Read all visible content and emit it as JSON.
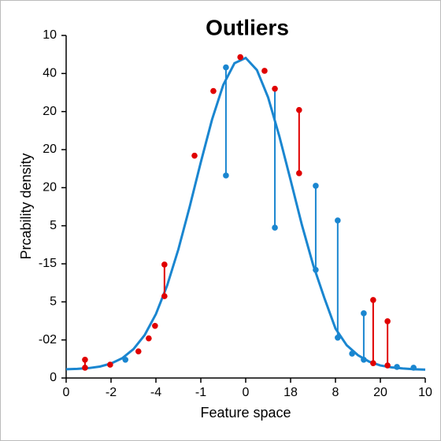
{
  "chart_data": {
    "type": "line",
    "title": "Outliers",
    "x_label": "Feature space",
    "y_label": "Prcability density",
    "xlim": [
      -4,
      4
    ],
    "ylim": [
      0,
      9
    ],
    "xticks": [
      {
        "value": -4,
        "label": "0"
      },
      {
        "value": -3,
        "label": "-2"
      },
      {
        "value": -2,
        "label": "-4"
      },
      -1,
      0,
      {
        "value": 1,
        "label": "18"
      },
      {
        "value": 2,
        "label": "8"
      },
      {
        "value": 3,
        "label": "20"
      },
      {
        "value": 4,
        "label": "10"
      }
    ],
    "yticks": [
      0,
      {
        "value": 1,
        "label": "-02"
      },
      {
        "value": 2,
        "label": "5"
      },
      {
        "value": 3,
        "label": "-15"
      },
      {
        "value": 4,
        "label": "5"
      },
      {
        "value": 5,
        "label": "20"
      },
      {
        "value": 6,
        "label": "20"
      },
      {
        "value": 7,
        "label": "20"
      },
      {
        "value": 8,
        "label": "40"
      },
      {
        "value": 9,
        "label": "10"
      }
    ],
    "curve": {
      "color": "#1a86d0",
      "x": [
        -4,
        -3.75,
        -3.5,
        -3.25,
        -3,
        -2.75,
        -2.5,
        -2.25,
        -2,
        -1.75,
        -1.5,
        -1.25,
        -1,
        -0.75,
        -0.5,
        -0.25,
        0,
        0.25,
        0.5,
        0.75,
        1,
        1.25,
        1.5,
        1.75,
        2,
        2.25,
        2.5,
        2.75,
        3,
        3.25,
        3.5,
        3.75,
        4
      ],
      "values": [
        0.23,
        0.24,
        0.26,
        0.3,
        0.38,
        0.52,
        0.76,
        1.13,
        1.68,
        2.43,
        3.38,
        4.49,
        5.67,
        6.79,
        7.7,
        8.27,
        8.41,
        8.09,
        7.37,
        6.35,
        5.2,
        4.03,
        2.98,
        2.11,
        1.3,
        0.86,
        0.6,
        0.43,
        0.33,
        0.28,
        0.25,
        0.23,
        0.22
      ]
    },
    "points": {
      "x": [
        -3.58,
        -3.02,
        -2.68,
        -2.39,
        -2.16,
        -2.02,
        -1.81,
        -1.14,
        -0.72,
        -0.44,
        -0.12,
        0.42,
        0.65,
        1.19,
        1.56,
        2.05,
        2.37,
        2.63,
        2.84,
        3.16,
        3.37,
        3.74
      ],
      "values": [
        0.27,
        0.35,
        0.48,
        0.7,
        1.04,
        1.37,
        2.15,
        5.84,
        7.54,
        8.16,
        8.43,
        8.07,
        7.6,
        5.38,
        2.84,
        1.06,
        0.64,
        0.48,
        0.39,
        0.33,
        0.29,
        0.27
      ],
      "colors": [
        "#e00000",
        "#e00000",
        "#1a86d0",
        "#e00000",
        "#e00000",
        "#e00000",
        "#e00000",
        "#e00000",
        "#e00000",
        "#1a86d0",
        "#e00000",
        "#e00000",
        "#e00000",
        "#e00000",
        "#1a86d0",
        "#1a86d0",
        "#1a86d0",
        "#1a86d0",
        "#e00000",
        "#e00000",
        "#1a86d0",
        "#1a86d0"
      ]
    },
    "outliers": {
      "x": [
        -3.58,
        -1.81,
        -0.44,
        0.65,
        1.19,
        1.56,
        2.05,
        2.63,
        2.84,
        3.16
      ],
      "values": [
        0.48,
        2.98,
        5.32,
        3.95,
        7.04,
        5.05,
        4.14,
        1.7,
        2.05,
        1.49
      ],
      "base": [
        0.27,
        2.15,
        8.16,
        7.6,
        5.38,
        2.84,
        1.06,
        0.48,
        0.39,
        0.33
      ],
      "colors": [
        "#e00000",
        "#e00000",
        "#1a86d0",
        "#1a86d0",
        "#e00000",
        "#1a86d0",
        "#1a86d0",
        "#1a86d0",
        "#e00000",
        "#e00000"
      ]
    }
  }
}
